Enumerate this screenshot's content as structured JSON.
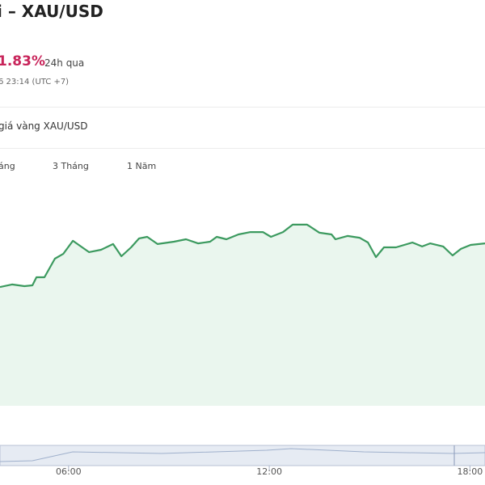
{
  "header": {
    "title": "i – XAU/USD",
    "change": "1.83%",
    "change_period": "24h qua",
    "timestamp": "6 23:14 (UTC +7)"
  },
  "section_title": "giá vàng XAU/USD",
  "tabs": [
    "áng",
    "3 Tháng",
    "1 Năm"
  ],
  "chart_data": {
    "type": "line",
    "color": "#3c9a5f",
    "fill": "#eaf6ee",
    "x": [
      3.95,
      4.31,
      4.68,
      4.92,
      5.04,
      5.28,
      5.59,
      5.84,
      6.13,
      6.37,
      6.61,
      6.97,
      7.33,
      7.58,
      7.87,
      8.11,
      8.35,
      8.66,
      9.15,
      9.51,
      9.87,
      10.23,
      10.43,
      10.72,
      11.08,
      11.44,
      11.81,
      12.05,
      12.41,
      12.7,
      13.13,
      13.5,
      13.86,
      13.98,
      14.34,
      14.7,
      14.95,
      15.19,
      15.43,
      15.79,
      16.28,
      16.57,
      16.81,
      17.2,
      17.48,
      17.73,
      18.02,
      18.45
    ],
    "values": [
      54.4,
      55.6,
      54.8,
      55.2,
      58.9,
      58.9,
      67.4,
      69.6,
      75.6,
      73,
      70.4,
      71.5,
      74.1,
      68.5,
      72.6,
      76.7,
      77.4,
      74.1,
      75.2,
      76.3,
      74.4,
      75.2,
      77.4,
      76.3,
      78.5,
      79.6,
      79.6,
      77.4,
      79.6,
      83,
      83,
      79.3,
      78.5,
      76.3,
      77.8,
      77,
      74.8,
      68.1,
      72.6,
      72.6,
      74.8,
      73,
      74.4,
      73,
      68.9,
      71.9,
      73.7,
      74.4
    ],
    "xlim": [
      3.95,
      18.45
    ],
    "ylim": [
      0,
      100
    ],
    "xticks": [
      {
        "value": 6,
        "label": "06:00"
      },
      {
        "value": 12,
        "label": "12:00"
      },
      {
        "value": 18,
        "label": "18:00"
      }
    ]
  }
}
